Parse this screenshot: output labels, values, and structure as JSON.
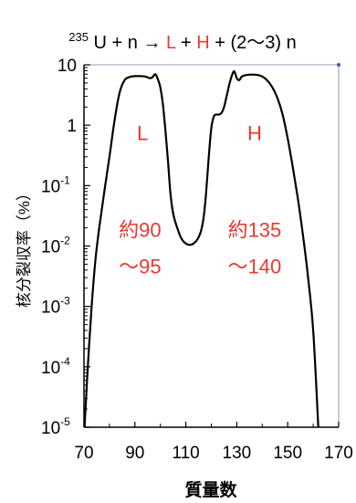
{
  "chart_data": {
    "type": "line",
    "title": {
      "mass_prefix": "235",
      "parts": [
        {
          "text": "U + n → ",
          "color": "#000000"
        },
        {
          "text": "L",
          "color": "#e8392f"
        },
        {
          "text": " + ",
          "color": "#000000"
        },
        {
          "text": "H",
          "color": "#e8392f"
        },
        {
          "text": " + (2〜3) n",
          "color": "#000000"
        }
      ]
    },
    "xlabel": "質量数",
    "ylabel": "核分裂収率（%）",
    "xlim": [
      70,
      170
    ],
    "ylim_log10": [
      -5,
      1
    ],
    "y_scale": "log",
    "grid": false,
    "x_ticks": [
      70,
      90,
      110,
      130,
      150,
      170
    ],
    "x_tick_labels": [
      "70",
      "90",
      "110",
      "130",
      "150",
      "170"
    ],
    "y_ticks": [
      {
        "value": 10,
        "base": "10",
        "exp": ""
      },
      {
        "value": 1,
        "base": "1",
        "exp": ""
      },
      {
        "value": 0.1,
        "base": "10",
        "exp": "-1"
      },
      {
        "value": 0.01,
        "base": "10",
        "exp": "-2"
      },
      {
        "value": 0.001,
        "base": "10",
        "exp": "-3"
      },
      {
        "value": 0.0001,
        "base": "10",
        "exp": "-4"
      },
      {
        "value": 1e-05,
        "base": "10",
        "exp": "-5"
      }
    ],
    "series": [
      {
        "color": "#000000",
        "points": [
          [
            70.2,
            1e-05
          ],
          [
            71.5,
            0.0001
          ],
          [
            73,
            0.001
          ],
          [
            74.5,
            0.006
          ],
          [
            76,
            0.02
          ],
          [
            78,
            0.08
          ],
          [
            80,
            0.3
          ],
          [
            82,
            1.2
          ],
          [
            84,
            3.5
          ],
          [
            86,
            5.6
          ],
          [
            88,
            6.3
          ],
          [
            90,
            6.5
          ],
          [
            92,
            6.5
          ],
          [
            94,
            6.4
          ],
          [
            96,
            6.0
          ],
          [
            97,
            6.3
          ],
          [
            98,
            7.0
          ],
          [
            99,
            5.8
          ],
          [
            100,
            4.2
          ],
          [
            101,
            2.2
          ],
          [
            102,
            0.8
          ],
          [
            103,
            0.25
          ],
          [
            104,
            0.07
          ],
          [
            105,
            0.035
          ],
          [
            106,
            0.024
          ],
          [
            107,
            0.018
          ],
          [
            108,
            0.014
          ],
          [
            109,
            0.012
          ],
          [
            110,
            0.011
          ],
          [
            111,
            0.0105
          ],
          [
            112,
            0.0105
          ],
          [
            113,
            0.011
          ],
          [
            114,
            0.012
          ],
          [
            115,
            0.014
          ],
          [
            116,
            0.018
          ],
          [
            117,
            0.03
          ],
          [
            118,
            0.08
          ],
          [
            119,
            0.3
          ],
          [
            120,
            0.9
          ],
          [
            121,
            1.4
          ],
          [
            122,
            1.5
          ],
          [
            123,
            1.5
          ],
          [
            124,
            1.6
          ],
          [
            125,
            2.0
          ],
          [
            126,
            3.0
          ],
          [
            127,
            4.6
          ],
          [
            128,
            6.5
          ],
          [
            129,
            7.8
          ],
          [
            130,
            6.0
          ],
          [
            131,
            5.6
          ],
          [
            132,
            6.4
          ],
          [
            134,
            6.8
          ],
          [
            136,
            6.9
          ],
          [
            138,
            6.8
          ],
          [
            140,
            6.4
          ],
          [
            142,
            5.5
          ],
          [
            144,
            4.2
          ],
          [
            146,
            2.8
          ],
          [
            148,
            1.5
          ],
          [
            150,
            0.6
          ],
          [
            152,
            0.2
          ],
          [
            154,
            0.06
          ],
          [
            156,
            0.015
          ],
          [
            158,
            0.003
          ],
          [
            160,
            0.0004
          ],
          [
            162,
            1e-05
          ]
        ]
      }
    ],
    "annotations": [
      {
        "text": "L",
        "x": 93,
        "y_log10": -0.25,
        "color": "#e8392f"
      },
      {
        "text": "H",
        "x": 137,
        "y_log10": -0.25,
        "color": "#e8392f"
      },
      {
        "text": "約90",
        "x": 92,
        "y_log10": -1.85,
        "color": "#e8392f"
      },
      {
        "text": "〜95",
        "x": 92,
        "y_log10": -2.45,
        "color": "#e8392f"
      },
      {
        "text": "約135",
        "x": 137,
        "y_log10": -1.85,
        "color": "#e8392f"
      },
      {
        "text": "〜140",
        "x": 137,
        "y_log10": -2.45,
        "color": "#e8392f"
      }
    ]
  }
}
